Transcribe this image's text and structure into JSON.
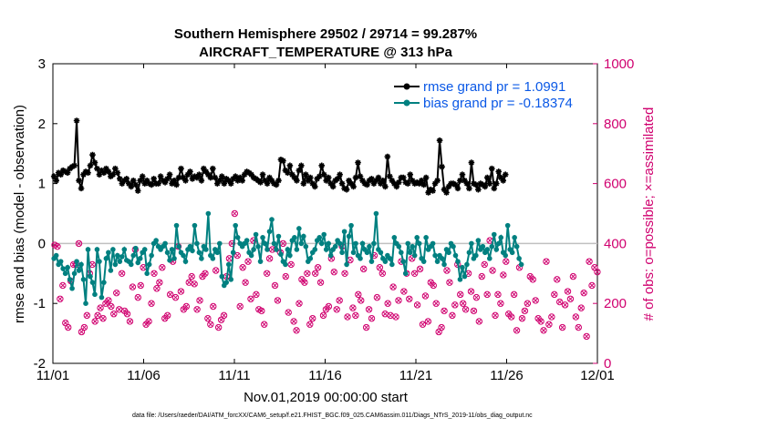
{
  "chart_data": {
    "type": "line",
    "title_line1": "Southern Hemisphere 29502 / 29714 = 99.287%",
    "title_line2": "AIRCRAFT_TEMPERATURE @ 313 hPa",
    "xlabel": "Nov.01,2019 00:00:00 start",
    "ylabel": "rmse and bias (model - observation)",
    "ylabel_right": "# of obs: o=possible; ×=assimilated",
    "footer": "data file: /Users/raeder/DAI/ATM_forcXX/CAM6_setup/f.e21.FHIST_BGC.f09_025.CAM6assim.011/Diags_NTrS_2019-11/obs_diag_output.nc",
    "xlim": [
      0,
      30
    ],
    "ylim": [
      -2,
      3
    ],
    "ylim_right": [
      0,
      1000
    ],
    "x_ticks": [
      0,
      5,
      10,
      15,
      20,
      25,
      30
    ],
    "x_tick_labels": [
      "11/01",
      "11/06",
      "11/11",
      "11/16",
      "11/21",
      "11/26",
      "12/01"
    ],
    "y_ticks": [
      -2,
      -1,
      0,
      1,
      2,
      3
    ],
    "y_tick_labels": [
      "-2",
      "-1",
      "0",
      "1",
      "2",
      "3"
    ],
    "y_ticks_right": [
      0,
      200,
      400,
      600,
      800,
      1000
    ],
    "y_tick_labels_right": [
      "0",
      "200",
      "400",
      "600",
      "800",
      "1000"
    ],
    "zero_line": 0,
    "legend": {
      "rmse_label": "rmse grand pr = 1.0991",
      "bias_label": "bias grand pr = -0.18374"
    },
    "series": [
      {
        "name": "rmse",
        "color": "#000000",
        "values": [
          1.12,
          1.05,
          1.18,
          1.15,
          1.22,
          1.2,
          1.18,
          1.25,
          1.28,
          1.3,
          2.05,
          1.05,
          0.92,
          1.15,
          1.2,
          1.18,
          1.3,
          1.48,
          1.35,
          1.25,
          1.15,
          1.22,
          1.18,
          1.25,
          1.2,
          1.12,
          1.15,
          1.25,
          1.18,
          1.08,
          1.0,
          1.05,
          1.08,
          1.0,
          0.95,
          1.05,
          0.98,
          0.88,
          1.05,
          1.12,
          1.0,
          1.05,
          1.0,
          0.98,
          1.08,
          1.0,
          1.0,
          1.12,
          1.05,
          1.02,
          1.08,
          1.15,
          1.0,
          1.05,
          0.98,
          1.1,
          1.25,
          1.1,
          1.05,
          1.15,
          1.2,
          1.08,
          1.12,
          1.1,
          1.15,
          1.05,
          1.25,
          1.2,
          1.15,
          1.1,
          1.25,
          1.1,
          1.0,
          1.05,
          1.12,
          1.0,
          1.08,
          1.05,
          1.0,
          1.08,
          1.12,
          1.05,
          1.1,
          1.05,
          1.15,
          1.2,
          1.18,
          1.15,
          1.1,
          1.08,
          1.05,
          1.02,
          1.15,
          1.05,
          1.0,
          1.1,
          1.05,
          1.0,
          0.98,
          1.05,
          1.4,
          1.38,
          1.22,
          1.18,
          1.3,
          1.15,
          1.1,
          1.05,
          1.22,
          1.3,
          1.0,
          1.15,
          1.05,
          1.1,
          1.0,
          0.95,
          1.08,
          1.12,
          1.3,
          1.15,
          1.05,
          1.1,
          1.0,
          0.95,
          1.05,
          1.08,
          1.15,
          1.0,
          0.92,
          0.9,
          1.05,
          1.0,
          0.95,
          1.1,
          1.35,
          1.12,
          1.05,
          1.0,
          0.98,
          1.05,
          1.08,
          1.0,
          1.05,
          1.1,
          1.0,
          1.05,
          0.95,
          1.45,
          1.12,
          1.05,
          1.0,
          0.95,
          1.02,
          1.1,
          1.1,
          1.02,
          1.0,
          1.15,
          1.05,
          1.0,
          1.02,
          1.0,
          1.05,
          0.98,
          1.1,
          0.85,
          0.9,
          0.88,
          1.0,
          1.05,
          1.72,
          1.28,
          0.9,
          0.85,
          0.95,
          1.0,
          1.0,
          0.98,
          0.92,
          1.05,
          1.15,
          1.05,
          1.0,
          0.92,
          1.35,
          1.0,
          0.98,
          0.9,
          1.0,
          0.98,
          0.95,
          1.1,
          1.0,
          1.25,
          0.92,
          1.0,
          1.2,
          1.1,
          1.05,
          1.15
        ],
        "x_step": 0.125
      },
      {
        "name": "bias",
        "color": "#008080",
        "values": [
          -0.25,
          -0.2,
          -0.35,
          -0.3,
          -0.42,
          -0.5,
          -0.4,
          -0.6,
          -0.75,
          -0.5,
          -0.3,
          -0.45,
          -0.35,
          -0.6,
          -1.0,
          -0.1,
          -0.55,
          -0.65,
          -0.85,
          -0.1,
          -0.3,
          -0.9,
          -0.65,
          -0.25,
          -0.15,
          -0.45,
          -0.1,
          -0.35,
          -0.2,
          -0.3,
          -0.22,
          -0.1,
          -0.28,
          -0.3,
          -0.35,
          -0.2,
          -0.08,
          -0.32,
          -0.25,
          -0.15,
          -0.1,
          -0.5,
          -0.35,
          -0.2,
          0.0,
          0.05,
          -0.05,
          -0.1,
          -0.05,
          0.0,
          -0.15,
          -0.28,
          -0.1,
          -0.25,
          0.3,
          -0.05,
          -0.15,
          -0.2,
          -0.3,
          -0.1,
          -0.05,
          -0.12,
          0.3,
          0.0,
          -0.15,
          -0.25,
          -0.05,
          -0.1,
          0.5,
          -0.2,
          -0.25,
          -0.1,
          -0.15,
          0.0,
          -0.55,
          -0.7,
          -0.65,
          -0.35,
          -0.6,
          -0.15,
          0.3,
          0.1,
          0.0,
          -0.05,
          0.0,
          0.05,
          -0.15,
          -0.2,
          -0.1,
          0.15,
          -0.05,
          -0.3,
          0.1,
          0.0,
          -0.1,
          0.2,
          0.4,
          0.0,
          -0.1,
          0.12,
          -0.18,
          -0.3,
          -0.35,
          -0.1,
          -0.2,
          0.05,
          0.1,
          -0.1,
          0.25,
          0.0,
          0.12,
          -0.05,
          -0.3,
          -0.25,
          -0.15,
          -0.1,
          0.05,
          0.1,
          0.0,
          0.15,
          -0.1,
          0.0,
          -0.2,
          -0.1,
          -0.05,
          0.05,
          0.0,
          -0.15,
          0.2,
          -0.35,
          0.12,
          0.3,
          -0.15,
          0.0,
          -0.2,
          -0.25,
          0.0,
          -0.1,
          -0.15,
          -0.05,
          -0.3,
          0.0,
          0.5,
          -0.1,
          -0.15,
          -0.25,
          -0.3,
          -0.2,
          -0.25,
          -0.35,
          0.1,
          0.0,
          -0.05,
          -0.15,
          -0.3,
          -0.5,
          0.0,
          -0.15,
          -0.05,
          -0.2,
          0.1,
          0.0,
          -0.25,
          -0.3,
          0.1,
          -0.1,
          -0.05,
          0.0,
          -0.2,
          -0.3,
          -0.2,
          -0.25,
          -0.35,
          -0.1,
          -0.15,
          0.0,
          -0.05,
          -0.2,
          -0.3,
          -0.6,
          -0.4,
          -0.55,
          -0.35,
          -0.15,
          0.0,
          -0.25,
          -0.2,
          0.05,
          -0.1,
          -0.05,
          -0.15,
          -0.1,
          -0.25,
          -0.05,
          0.15,
          -0.1,
          0.0,
          0.1,
          -0.15,
          -0.2,
          0.3,
          -0.1,
          -0.15,
          0.1,
          -0.05,
          -0.25,
          -0.35
        ],
        "x_step": 0.125
      },
      {
        "name": "obs_possible",
        "axis": "right",
        "color": "#d0006f",
        "values": [
          395,
          390,
          215,
          260,
          135,
          120,
          275,
          330,
          330,
          400,
          105,
          120,
          160,
          300,
          330,
          140,
          160,
          185,
          150,
          200,
          210,
          190,
          165,
          235,
          180,
          300,
          175,
          165,
          140,
          255,
          380,
          220,
          260,
          320,
          130,
          140,
          200,
          300,
          250,
          270,
          320,
          150,
          160,
          230,
          340,
          220,
          390,
          240,
          180,
          190,
          270,
          290,
          265,
          180,
          210,
          290,
          300,
          150,
          130,
          190,
          310,
          120,
          145,
          160,
          290,
          350,
          400,
          500,
          360,
          190,
          320,
          270,
          340,
          215,
          410,
          230,
          180,
          175,
          130,
          300,
          350,
          380,
          260,
          210,
          370,
          400,
          290,
          170,
          330,
          140,
          110,
          200,
          280,
          270,
          300,
          130,
          150,
          300,
          320,
          270,
          160,
          180,
          190,
          350,
          305,
          180,
          210,
          390,
          300,
          155,
          345,
          185,
          160,
          230,
          210,
          315,
          120,
          180,
          150,
          360,
          220,
          320,
          300,
          165,
          200,
          160,
          255,
          155,
          210,
          340,
          240,
          300,
          215,
          350,
          300,
          195,
          315,
          130,
          225,
          140,
          270,
          260,
          200,
          105,
          120,
          175,
          310,
          270,
          160,
          195,
          330,
          230,
          200,
          180,
          300,
          240,
          175,
          220,
          140,
          290,
          330,
          230,
          410,
          310,
          160,
          230,
          200,
          295,
          340,
          165,
          155,
          230,
          110,
          320,
          150,
          175,
          200,
          290,
          280,
          210,
          150,
          140,
          110,
          340,
          130,
          155,
          230,
          280,
          205,
          120,
          195,
          240,
          215,
          290,
          155,
          120,
          185,
          235,
          90,
          340,
          260,
          320,
          305,
          155,
          145,
          0
        ],
        "x_step": 0.148
      }
    ]
  }
}
